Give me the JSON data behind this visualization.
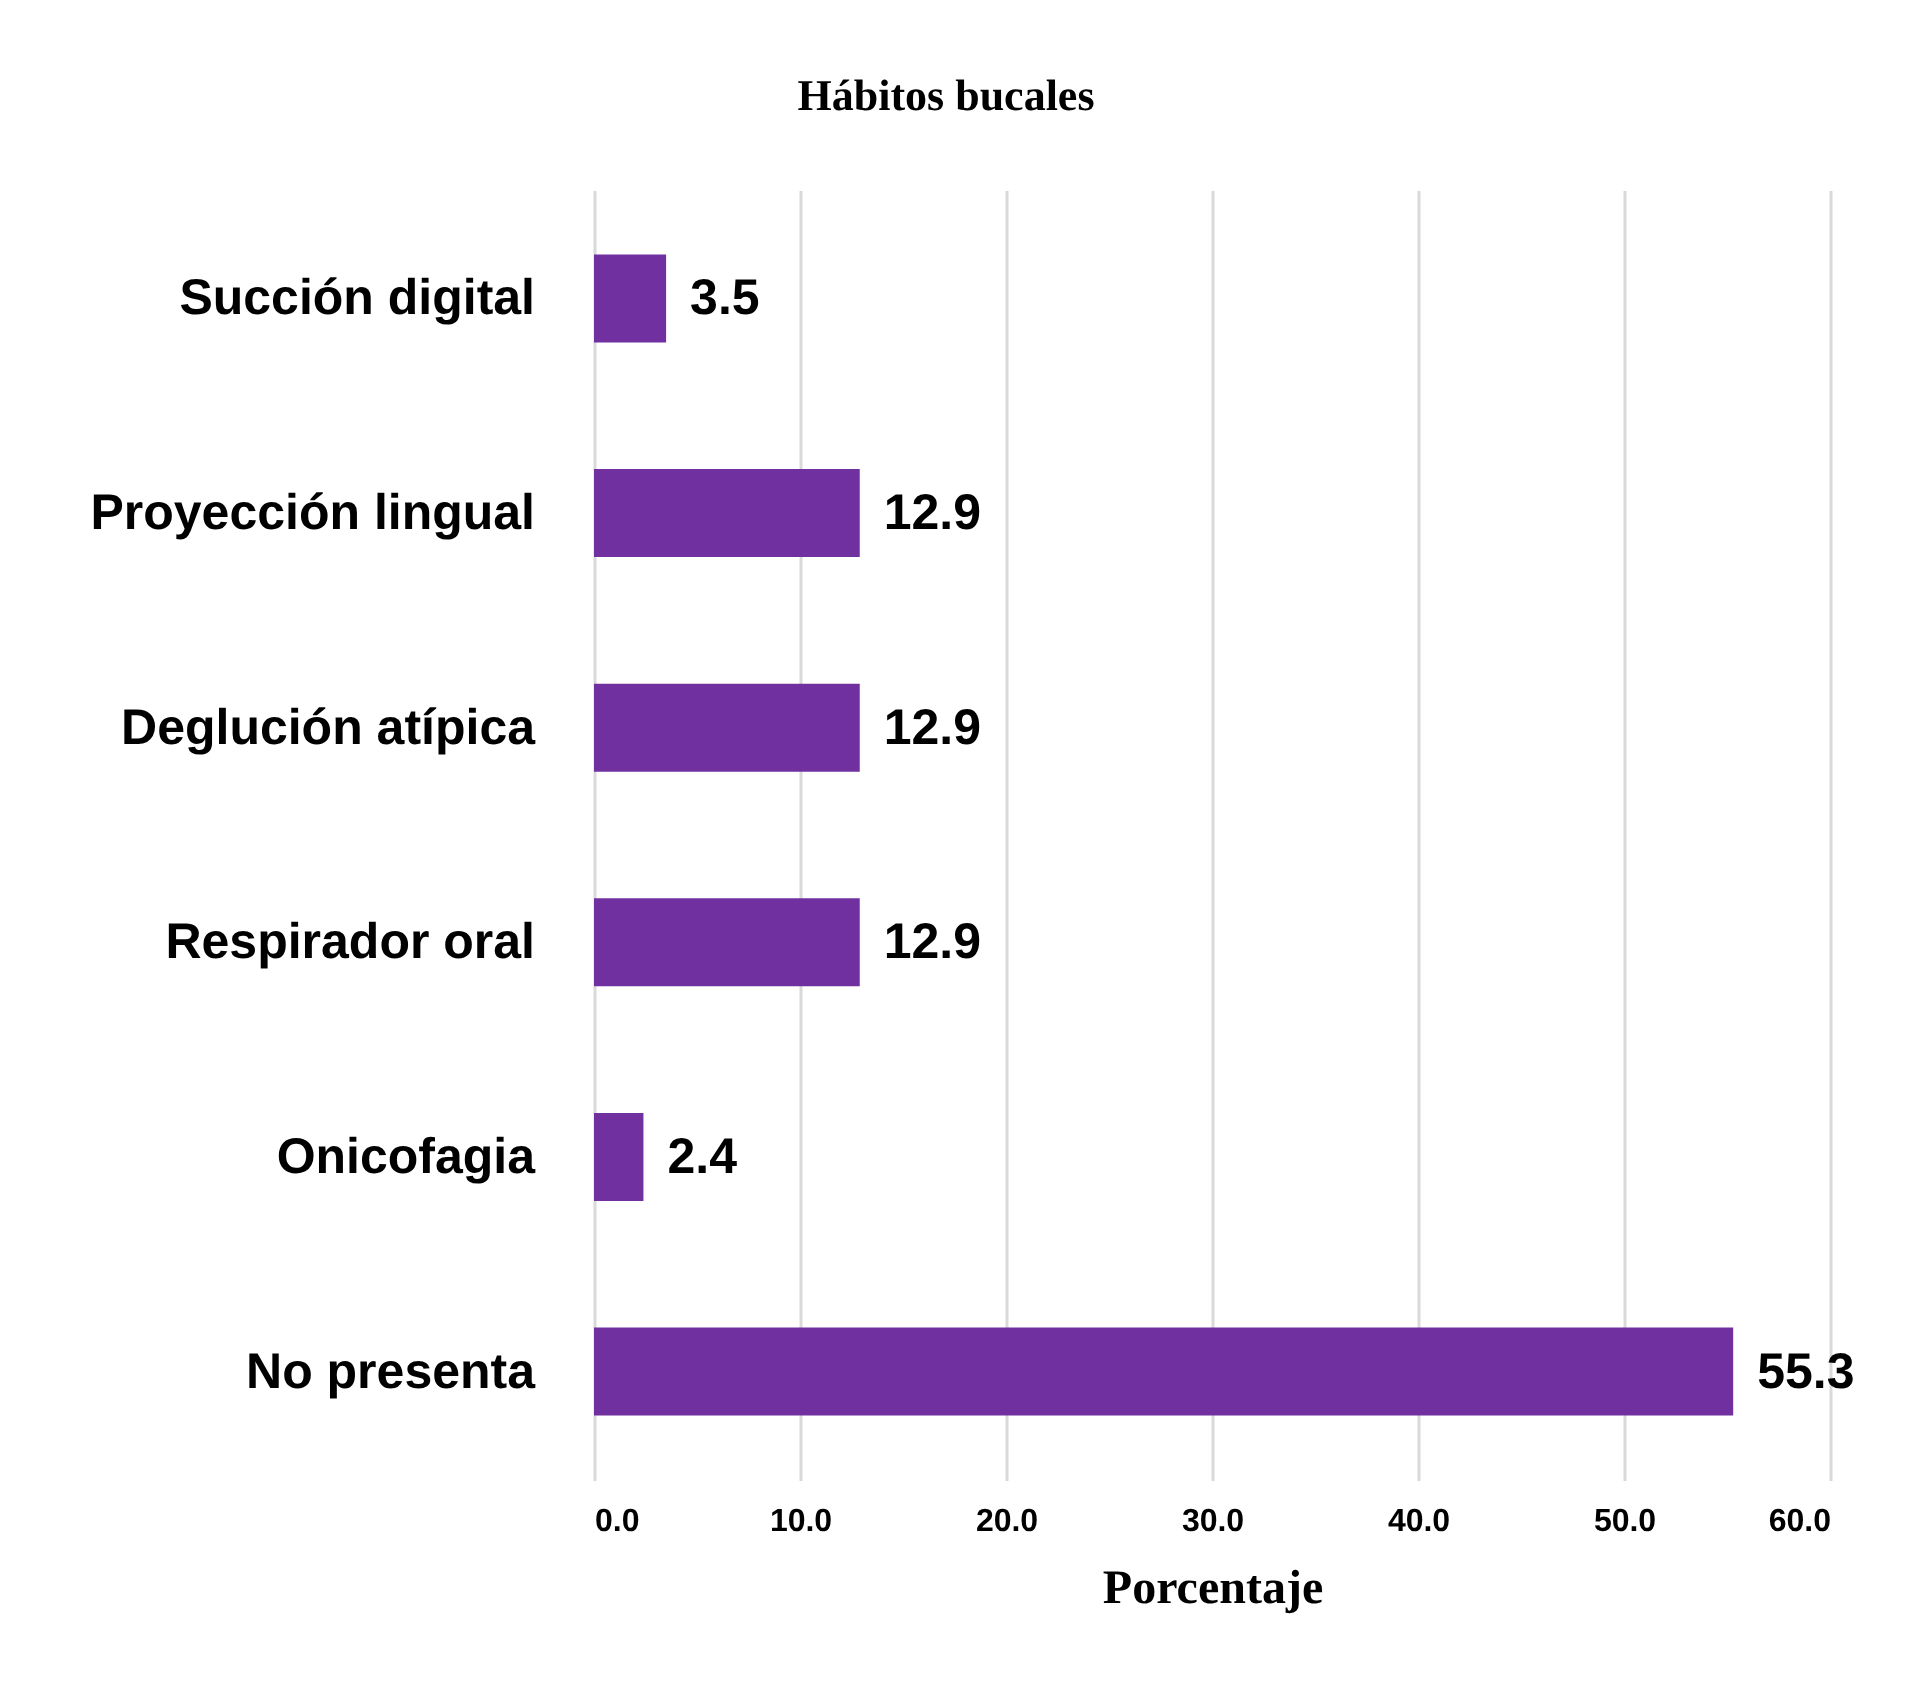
{
  "chart_data": {
    "type": "bar",
    "orientation": "horizontal",
    "title": "Hábitos bucales",
    "xlabel": "Porcentaje",
    "categories": [
      "Succión digital",
      "Proyección lingual",
      "Deglución atípica",
      "Respirador oral",
      "Onicofagia",
      "No presenta"
    ],
    "values": [
      3.5,
      12.9,
      12.9,
      12.9,
      2.4,
      55.3
    ],
    "color": "#7030a0",
    "xlim": [
      0,
      60
    ],
    "xticks": [
      {
        "value": 0,
        "label": "0.0"
      },
      {
        "value": 10,
        "label": "10.0"
      },
      {
        "value": 20,
        "label": "20.0"
      },
      {
        "value": 30,
        "label": "30.0"
      },
      {
        "value": 40,
        "label": "40.0"
      },
      {
        "value": 50,
        "label": "50.0"
      },
      {
        "value": 60,
        "label": "60.0"
      }
    ],
    "grid": "x",
    "data_labels": true
  }
}
